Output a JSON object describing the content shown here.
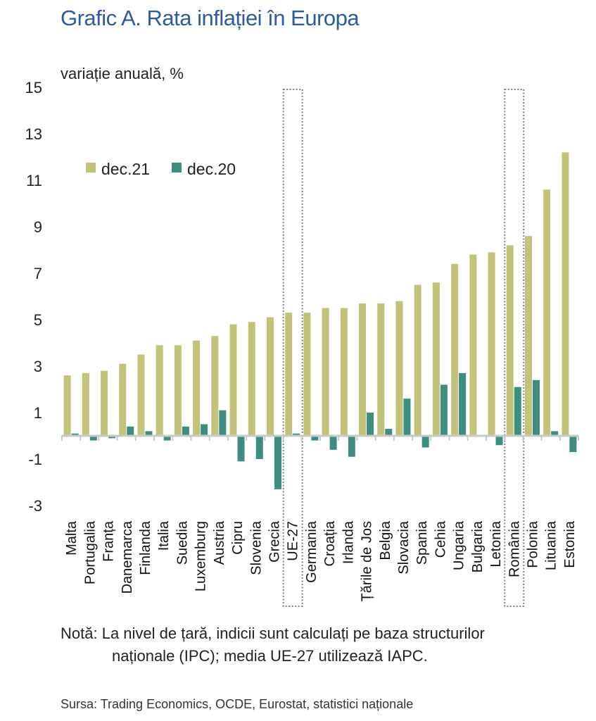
{
  "title": "Grafic A. Rata inflației în Europa",
  "ylabel": "variație anuală, %",
  "note": {
    "lead": "Notă:",
    "line1": "La nivel de țară, indicii sunt calculați pe baza structurilor",
    "line2": "naționale (IPC); media UE-27 utilizează IAPC."
  },
  "source": "Sursa: Trading Economics, OCDE, Eurostat, statistici naționale",
  "colors": {
    "dec21": "#c2c27a",
    "dec20": "#3f8c80",
    "highlight": "#808080"
  },
  "chart_data": {
    "type": "bar",
    "categories": [
      "Malta",
      "Portugalia",
      "Franța",
      "Danemarca",
      "Finlanda",
      "Italia",
      "Suedia",
      "Luxemburg",
      "Austria",
      "Cipru",
      "Slovenia",
      "Grecia",
      "UE-27",
      "Germania",
      "Croația",
      "Irlanda",
      "Țările de Jos",
      "Belgia",
      "Slovacia",
      "Spania",
      "Cehia",
      "Ungaria",
      "Bulgaria",
      "Letonia",
      "România",
      "Polonia",
      "Lituania",
      "Estonia"
    ],
    "series": [
      {
        "name": "dec.21",
        "values": [
          2.6,
          2.7,
          2.8,
          3.1,
          3.5,
          3.9,
          3.9,
          4.1,
          4.3,
          4.8,
          4.9,
          5.1,
          5.3,
          5.3,
          5.5,
          5.5,
          5.7,
          5.7,
          5.8,
          6.5,
          6.6,
          7.4,
          7.8,
          7.9,
          8.2,
          8.6,
          10.6,
          12.2
        ]
      },
      {
        "name": "dec.20",
        "values": [
          0.1,
          -0.2,
          -0.1,
          0.4,
          0.2,
          -0.2,
          0.4,
          0.5,
          1.1,
          -1.1,
          -1.0,
          -2.3,
          0.1,
          -0.2,
          -0.6,
          -0.9,
          1.0,
          0.3,
          1.6,
          -0.5,
          2.2,
          2.7,
          0.0,
          -0.4,
          2.1,
          2.4,
          0.2,
          -0.7
        ]
      }
    ],
    "yticks": [
      "15",
      "13",
      "11",
      "9",
      "7",
      "5",
      "3",
      "1",
      "-1",
      "-3"
    ],
    "ylim": [
      -3,
      15
    ],
    "highlighted": [
      "UE-27",
      "România"
    ],
    "legend": "top-left",
    "grid": false
  }
}
